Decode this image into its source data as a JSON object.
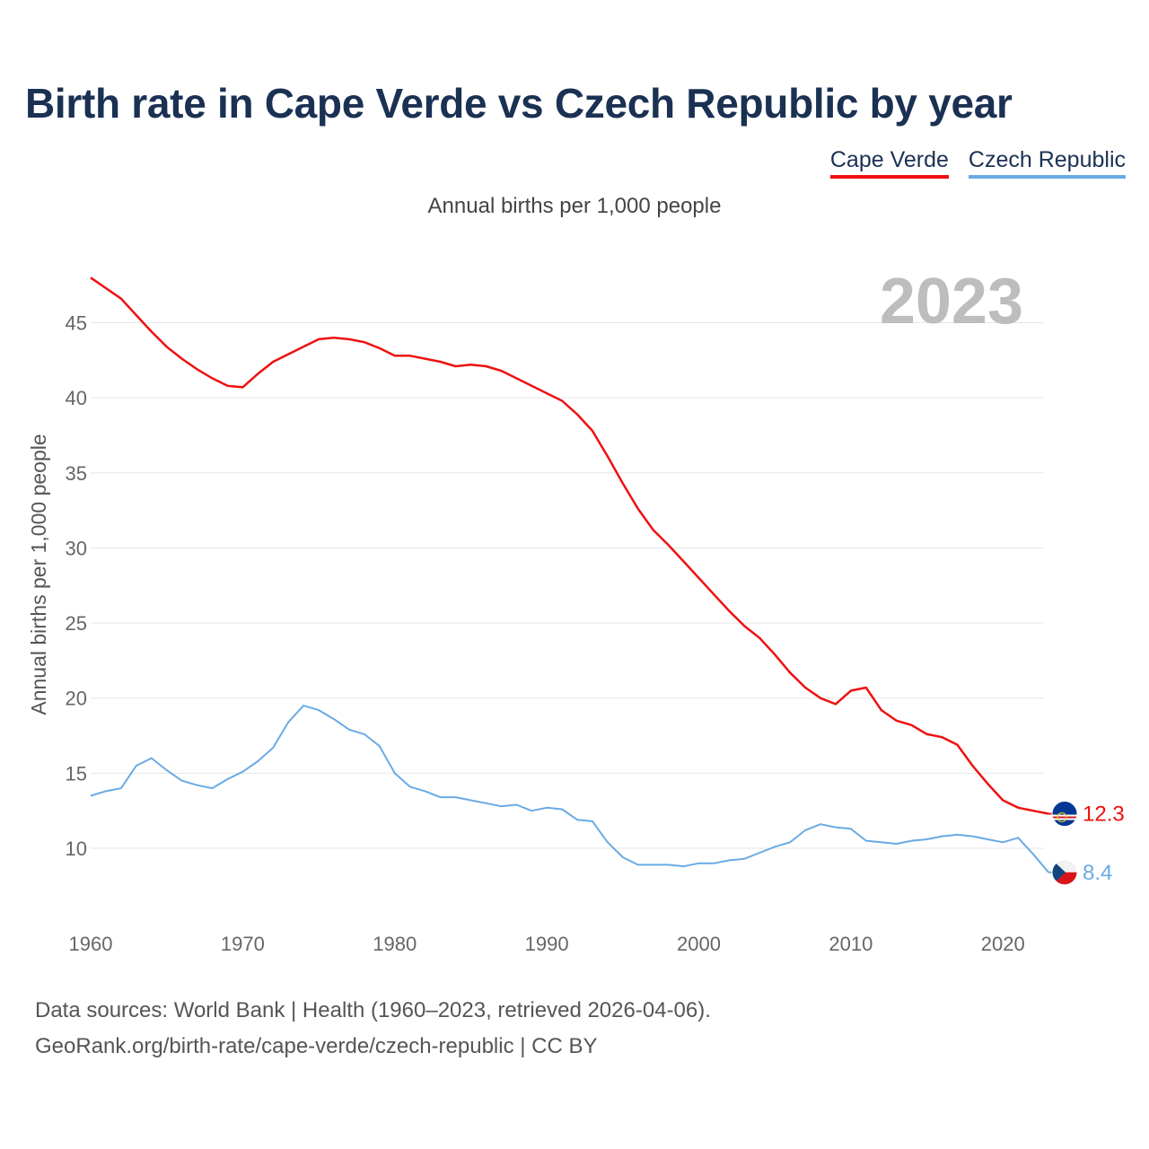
{
  "header": {
    "title": "Birth rate in Cape Verde vs Czech Republic by year"
  },
  "subtitle": "Annual births per 1,000 people",
  "footer": {
    "source_line": "Data sources: World Bank | Health (1960–2023, retrieved 2026-04-06).",
    "credit_line": "GeoRank.org/birth-rate/cape-verde/czech-republic | CC BY"
  },
  "colors": {
    "cape_verde": "#ee1111",
    "czech_republic": "#6aaae4"
  },
  "chart_data": {
    "type": "line",
    "title": "Birth rate in Cape Verde vs Czech Republic by year",
    "subtitle": "Annual births per 1,000 people",
    "xlabel": "",
    "ylabel": "Annual births per 1,000 people",
    "year_label": "2023",
    "xlim": [
      1960,
      2023
    ],
    "ylim": [
      5,
      48
    ],
    "x_ticks": [
      1960,
      1970,
      1980,
      1990,
      2000,
      2010,
      2020
    ],
    "y_ticks": [
      10,
      15,
      20,
      25,
      30,
      35,
      40,
      45
    ],
    "grid": true,
    "legend_position": "top-right",
    "x": [
      1960,
      1961,
      1962,
      1963,
      1964,
      1965,
      1966,
      1967,
      1968,
      1969,
      1970,
      1971,
      1972,
      1973,
      1974,
      1975,
      1976,
      1977,
      1978,
      1979,
      1980,
      1981,
      1982,
      1983,
      1984,
      1985,
      1986,
      1987,
      1988,
      1989,
      1990,
      1991,
      1992,
      1993,
      1994,
      1995,
      1996,
      1997,
      1998,
      1999,
      2000,
      2001,
      2002,
      2003,
      2004,
      2005,
      2006,
      2007,
      2008,
      2009,
      2010,
      2011,
      2012,
      2013,
      2014,
      2015,
      2016,
      2017,
      2018,
      2019,
      2020,
      2021,
      2022,
      2023
    ],
    "series": [
      {
        "name": "Cape Verde",
        "color": "#ee1111",
        "end_label": "12.3",
        "flag": "cape-verde-flag-icon",
        "values": [
          48.0,
          47.3,
          46.6,
          45.5,
          44.4,
          43.4,
          42.6,
          41.9,
          41.3,
          40.8,
          40.7,
          41.6,
          42.4,
          42.9,
          43.4,
          43.9,
          44.0,
          43.9,
          43.7,
          43.3,
          42.8,
          42.8,
          42.6,
          42.4,
          42.1,
          42.2,
          42.1,
          41.8,
          41.3,
          40.8,
          40.3,
          39.8,
          38.9,
          37.8,
          36.1,
          34.3,
          32.6,
          31.2,
          30.2,
          29.1,
          28.0,
          26.9,
          25.8,
          24.8,
          24.0,
          22.9,
          21.7,
          20.7,
          20.0,
          19.6,
          20.5,
          20.7,
          19.2,
          18.5,
          18.2,
          17.6,
          17.4,
          16.9,
          15.5,
          14.3,
          13.2,
          12.7,
          12.5,
          12.3
        ]
      },
      {
        "name": "Czech Republic",
        "color": "#6aaae4",
        "end_label": "8.4",
        "flag": "czech-republic-flag-icon",
        "values": [
          13.5,
          13.8,
          14.0,
          15.5,
          16.0,
          15.2,
          14.5,
          14.2,
          14.0,
          14.6,
          15.1,
          15.8,
          16.7,
          18.4,
          19.5,
          19.2,
          18.6,
          17.9,
          17.6,
          16.8,
          15.0,
          14.1,
          13.8,
          13.4,
          13.4,
          13.2,
          13.0,
          12.8,
          12.9,
          12.5,
          12.7,
          12.6,
          11.9,
          11.8,
          10.4,
          9.4,
          8.9,
          8.9,
          8.9,
          8.8,
          9.0,
          9.0,
          9.2,
          9.3,
          9.7,
          10.1,
          10.4,
          11.2,
          11.6,
          11.4,
          11.3,
          10.5,
          10.4,
          10.3,
          10.5,
          10.6,
          10.8,
          10.9,
          10.8,
          10.6,
          10.4,
          10.7,
          9.6,
          8.4
        ]
      }
    ]
  }
}
